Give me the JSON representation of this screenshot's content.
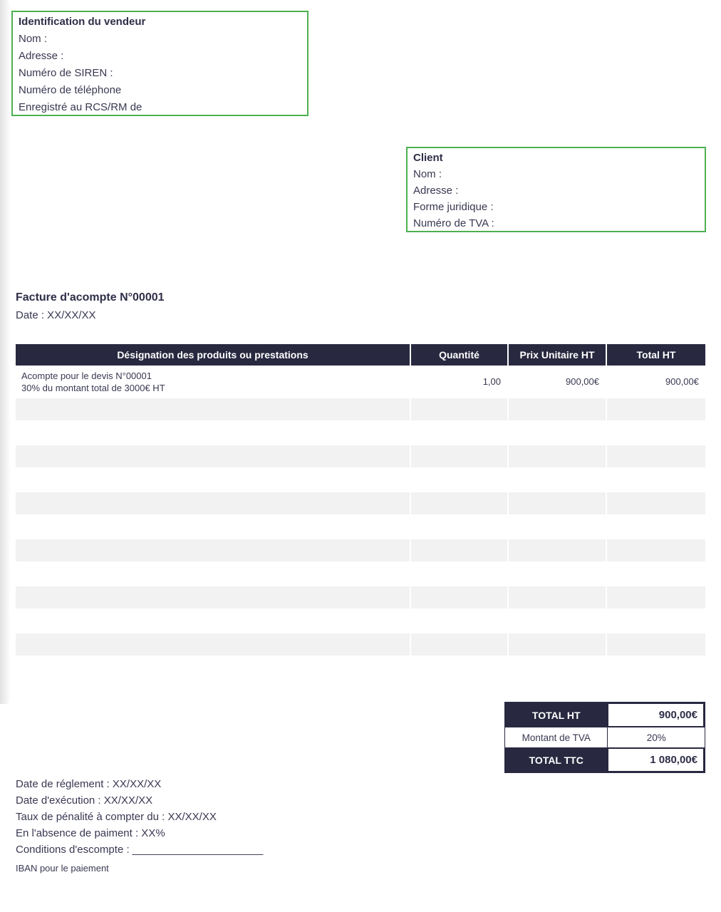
{
  "colors": {
    "accent_green": "#4cb050",
    "dark_navy": "#282840",
    "stripe_gray": "#f2f2f2",
    "text": "#383852"
  },
  "vendor_box": {
    "title": "Identification du vendeur",
    "lines": [
      "Nom :",
      "Adresse :",
      "Numéro de SIREN :",
      "Numéro de téléphone",
      "Enregistré au RCS/RM de"
    ]
  },
  "client_box": {
    "title": "Client",
    "lines": [
      "Nom :",
      "Adresse :",
      "Forme juridique :",
      "Numéro de TVA :"
    ]
  },
  "invoice": {
    "title": "Facture d'acompte N°00001",
    "date_line": "Date : XX/XX/XX"
  },
  "items_table": {
    "headers": [
      "Désignation des produits ou prestations",
      "Quantité",
      "Prix Unitaire HT",
      "Total HT"
    ],
    "rows": [
      {
        "designation_line1": "Acompte pour le devis N°00001",
        "designation_line2": "30% du montant total de 3000€ HT",
        "quantity": "1,00",
        "unit_price": "900,00€",
        "total": "900,00€"
      }
    ],
    "empty_row_count": 11
  },
  "totals": {
    "rows": [
      {
        "label": "TOTAL HT",
        "value": "900,00€"
      },
      {
        "label": "Montant de TVA",
        "value": "20%"
      },
      {
        "label": "TOTAL TTC",
        "value": "1 080,00€"
      }
    ]
  },
  "footer": {
    "lines": [
      "Date de réglement : XX/XX/XX",
      "Date d'exécution : XX/XX/XX",
      "Taux de pénalité à compter du : XX/XX/XX",
      "En l'absence de paiment : XX%",
      "Conditions d'escompte : ______________________"
    ],
    "iban_line": "IBAN pour le paiement"
  }
}
